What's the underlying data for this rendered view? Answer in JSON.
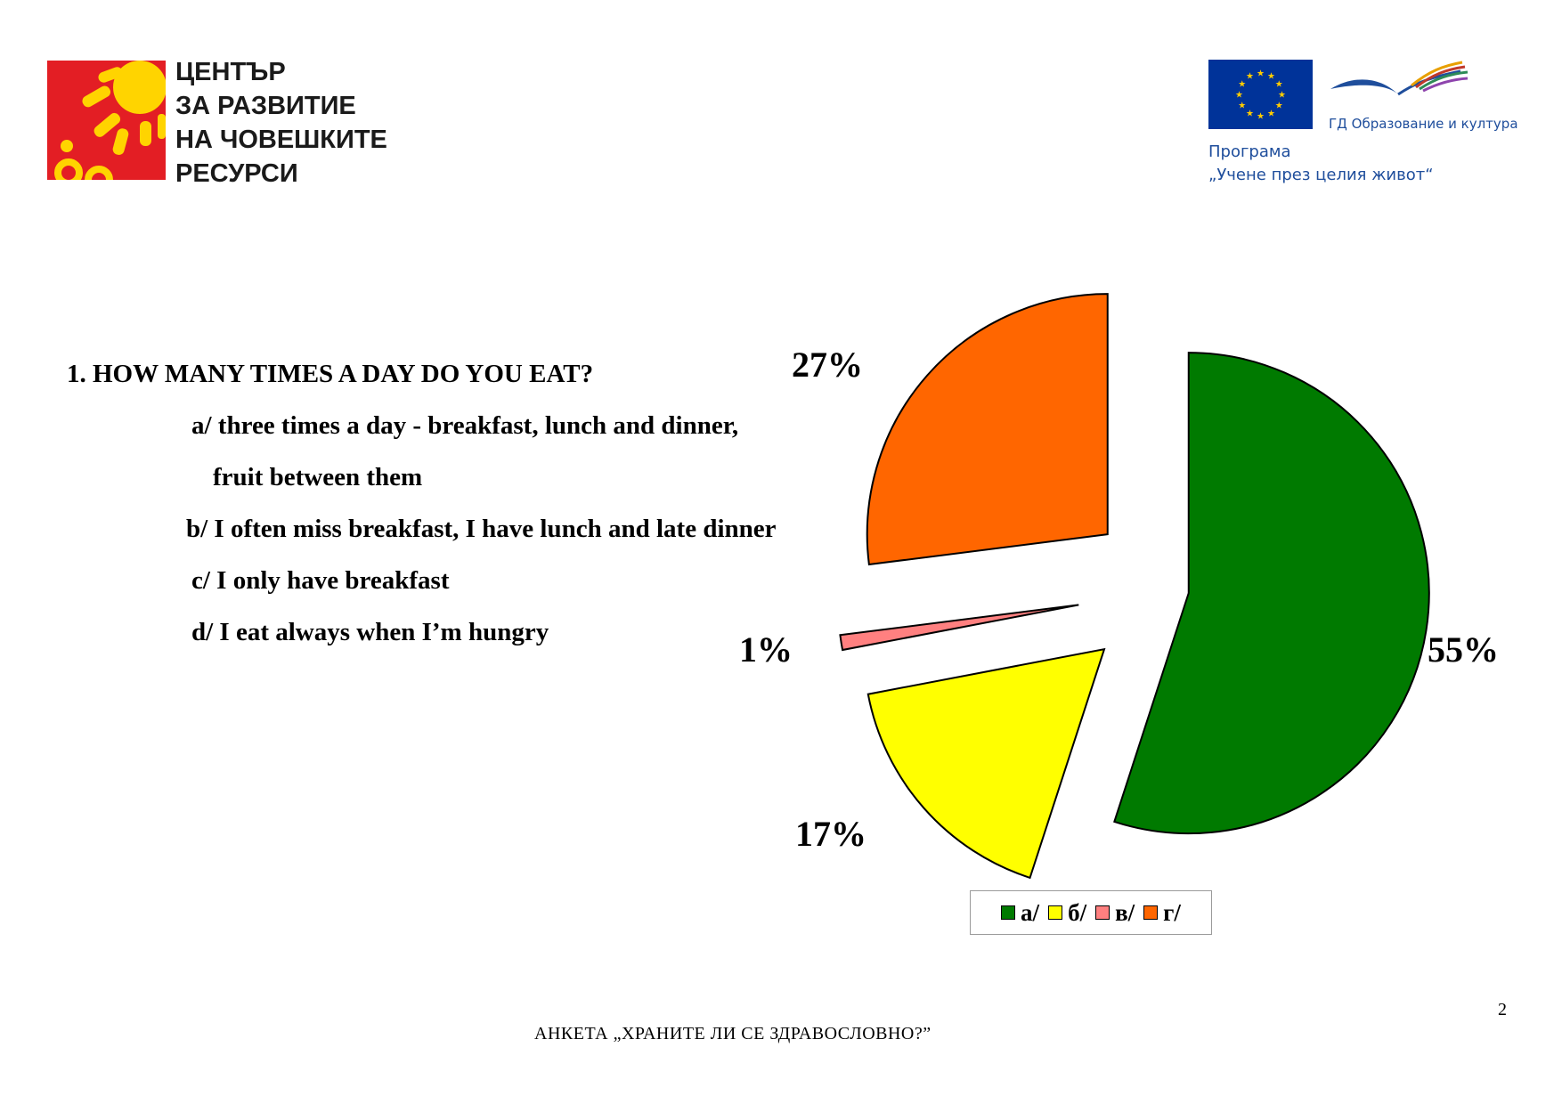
{
  "header": {
    "org_lines": [
      "ЦЕНТЪР",
      "ЗА РАЗВИТИЕ",
      "НА ЧОВЕШКИТЕ",
      "РЕСУРСИ"
    ],
    "dg_label": "ГД Образование и култура",
    "program_line1": "Програма",
    "program_line2": "„Учене през целия живот“"
  },
  "question": {
    "title": "1.  HOW MANY TIMES A DAY DO YOU EAT?",
    "option_a_line1": "a/ three times a day - breakfast, lunch and dinner,",
    "option_a_line2": "fruit between them",
    "option_b": "b/ I often miss breakfast, I have lunch and late dinner",
    "option_c": "c/ I only have breakfast",
    "option_d": "d/ I eat always when I’m hungry"
  },
  "chart_data": {
    "type": "pie",
    "exploded": true,
    "slices": [
      {
        "label": "а/",
        "value": 55,
        "display": "55%",
        "color": "#007a00"
      },
      {
        "label": "б/",
        "value": 17,
        "display": "17%",
        "color": "#ffff00"
      },
      {
        "label": "в/",
        "value": 1,
        "display": "1%",
        "color": "#ff8080"
      },
      {
        "label": "г/",
        "value": 27,
        "display": "27%",
        "color": "#ff6600"
      }
    ],
    "legend_position": "bottom"
  },
  "footer": {
    "title": "АНКЕТА  „ХРАНИТЕ  ЛИ СЕ  ЗДРАВОСЛОВНО?”",
    "page_number": "2"
  }
}
